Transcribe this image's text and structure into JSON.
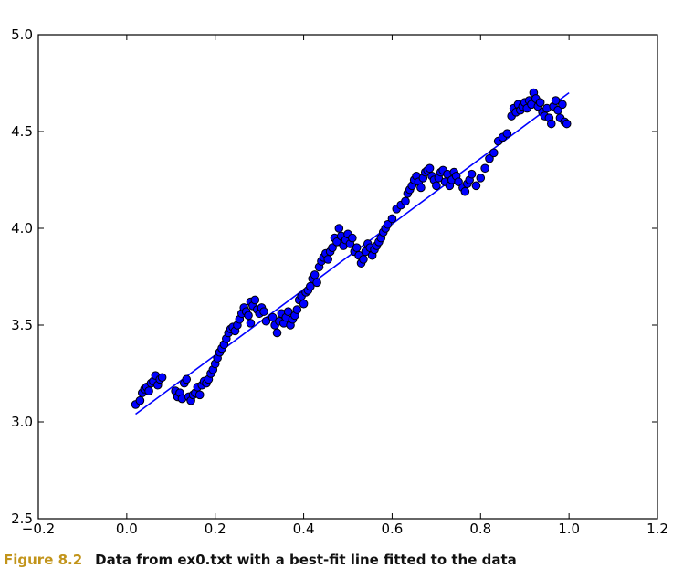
{
  "chart_data": {
    "type": "scatter",
    "title": "",
    "xlabel": "",
    "ylabel": "",
    "xlim": [
      -0.2,
      1.2
    ],
    "ylim": [
      2.5,
      5.0
    ],
    "x_ticks": [
      -0.2,
      0.0,
      0.2,
      0.4,
      0.6,
      0.8,
      1.0,
      1.2
    ],
    "x_tick_labels": [
      "−0.2",
      "0.0",
      "0.2",
      "0.4",
      "0.6",
      "0.8",
      "1.0",
      "1.2"
    ],
    "y_ticks": [
      2.5,
      3.0,
      3.5,
      4.0,
      4.5,
      5.0
    ],
    "y_tick_labels": [
      "2.5",
      "3.0",
      "3.5",
      "4.0",
      "4.5",
      "5.0"
    ],
    "grid": false,
    "legend": "none",
    "marker_color": "#0000ff",
    "line_color": "#0000ff",
    "fit_line": {
      "x": [
        0.02,
        1.0
      ],
      "y": [
        3.04,
        4.7
      ]
    },
    "points": [
      [
        0.02,
        3.09
      ],
      [
        0.03,
        3.11
      ],
      [
        0.035,
        3.15
      ],
      [
        0.04,
        3.17
      ],
      [
        0.045,
        3.18
      ],
      [
        0.05,
        3.16
      ],
      [
        0.055,
        3.2
      ],
      [
        0.06,
        3.21
      ],
      [
        0.065,
        3.24
      ],
      [
        0.07,
        3.19
      ],
      [
        0.075,
        3.22
      ],
      [
        0.08,
        3.23
      ],
      [
        0.11,
        3.16
      ],
      [
        0.115,
        3.13
      ],
      [
        0.12,
        3.15
      ],
      [
        0.125,
        3.12
      ],
      [
        0.13,
        3.2
      ],
      [
        0.135,
        3.22
      ],
      [
        0.14,
        3.13
      ],
      [
        0.145,
        3.11
      ],
      [
        0.15,
        3.14
      ],
      [
        0.155,
        3.15
      ],
      [
        0.16,
        3.18
      ],
      [
        0.165,
        3.14
      ],
      [
        0.17,
        3.19
      ],
      [
        0.175,
        3.21
      ],
      [
        0.18,
        3.2
      ],
      [
        0.185,
        3.22
      ],
      [
        0.19,
        3.25
      ],
      [
        0.195,
        3.27
      ],
      [
        0.2,
        3.3
      ],
      [
        0.205,
        3.33
      ],
      [
        0.21,
        3.36
      ],
      [
        0.215,
        3.38
      ],
      [
        0.22,
        3.4
      ],
      [
        0.225,
        3.43
      ],
      [
        0.23,
        3.46
      ],
      [
        0.235,
        3.48
      ],
      [
        0.24,
        3.49
      ],
      [
        0.245,
        3.47
      ],
      [
        0.25,
        3.5
      ],
      [
        0.255,
        3.53
      ],
      [
        0.26,
        3.56
      ],
      [
        0.265,
        3.59
      ],
      [
        0.27,
        3.57
      ],
      [
        0.275,
        3.55
      ],
      [
        0.28,
        3.62
      ],
      [
        0.285,
        3.6
      ],
      [
        0.29,
        3.63
      ],
      [
        0.295,
        3.58
      ],
      [
        0.3,
        3.56
      ],
      [
        0.305,
        3.59
      ],
      [
        0.31,
        3.57
      ],
      [
        0.315,
        3.52
      ],
      [
        0.28,
        3.51
      ],
      [
        0.33,
        3.54
      ],
      [
        0.335,
        3.5
      ],
      [
        0.34,
        3.46
      ],
      [
        0.345,
        3.52
      ],
      [
        0.35,
        3.56
      ],
      [
        0.355,
        3.51
      ],
      [
        0.36,
        3.54
      ],
      [
        0.365,
        3.57
      ],
      [
        0.37,
        3.5
      ],
      [
        0.375,
        3.53
      ],
      [
        0.38,
        3.55
      ],
      [
        0.385,
        3.58
      ],
      [
        0.39,
        3.63
      ],
      [
        0.395,
        3.65
      ],
      [
        0.4,
        3.61
      ],
      [
        0.405,
        3.67
      ],
      [
        0.41,
        3.68
      ],
      [
        0.415,
        3.7
      ],
      [
        0.42,
        3.74
      ],
      [
        0.425,
        3.76
      ],
      [
        0.43,
        3.72
      ],
      [
        0.435,
        3.8
      ],
      [
        0.44,
        3.83
      ],
      [
        0.445,
        3.85
      ],
      [
        0.45,
        3.87
      ],
      [
        0.455,
        3.84
      ],
      [
        0.46,
        3.88
      ],
      [
        0.465,
        3.9
      ],
      [
        0.47,
        3.95
      ],
      [
        0.475,
        3.93
      ],
      [
        0.48,
        4.0
      ],
      [
        0.485,
        3.96
      ],
      [
        0.49,
        3.91
      ],
      [
        0.495,
        3.94
      ],
      [
        0.5,
        3.97
      ],
      [
        0.505,
        3.92
      ],
      [
        0.51,
        3.95
      ],
      [
        0.515,
        3.88
      ],
      [
        0.52,
        3.9
      ],
      [
        0.525,
        3.86
      ],
      [
        0.53,
        3.82
      ],
      [
        0.535,
        3.84
      ],
      [
        0.54,
        3.88
      ],
      [
        0.545,
        3.92
      ],
      [
        0.55,
        3.9
      ],
      [
        0.555,
        3.86
      ],
      [
        0.56,
        3.89
      ],
      [
        0.565,
        3.91
      ],
      [
        0.57,
        3.93
      ],
      [
        0.575,
        3.95
      ],
      [
        0.58,
        3.98
      ],
      [
        0.585,
        4.0
      ],
      [
        0.59,
        4.02
      ],
      [
        0.6,
        4.05
      ],
      [
        0.61,
        4.1
      ],
      [
        0.62,
        4.12
      ],
      [
        0.63,
        4.14
      ],
      [
        0.635,
        4.18
      ],
      [
        0.64,
        4.2
      ],
      [
        0.645,
        4.22
      ],
      [
        0.65,
        4.25
      ],
      [
        0.655,
        4.27
      ],
      [
        0.66,
        4.24
      ],
      [
        0.665,
        4.21
      ],
      [
        0.67,
        4.26
      ],
      [
        0.675,
        4.29
      ],
      [
        0.68,
        4.3
      ],
      [
        0.685,
        4.31
      ],
      [
        0.69,
        4.27
      ],
      [
        0.695,
        4.25
      ],
      [
        0.7,
        4.22
      ],
      [
        0.705,
        4.26
      ],
      [
        0.71,
        4.29
      ],
      [
        0.715,
        4.3
      ],
      [
        0.72,
        4.24
      ],
      [
        0.725,
        4.28
      ],
      [
        0.73,
        4.22
      ],
      [
        0.735,
        4.25
      ],
      [
        0.74,
        4.29
      ],
      [
        0.745,
        4.27
      ],
      [
        0.75,
        4.24
      ],
      [
        0.76,
        4.21
      ],
      [
        0.765,
        4.19
      ],
      [
        0.77,
        4.23
      ],
      [
        0.775,
        4.25
      ],
      [
        0.78,
        4.28
      ],
      [
        0.79,
        4.22
      ],
      [
        0.8,
        4.26
      ],
      [
        0.81,
        4.31
      ],
      [
        0.82,
        4.36
      ],
      [
        0.83,
        4.39
      ],
      [
        0.84,
        4.45
      ],
      [
        0.85,
        4.47
      ],
      [
        0.86,
        4.49
      ],
      [
        0.87,
        4.58
      ],
      [
        0.875,
        4.62
      ],
      [
        0.88,
        4.6
      ],
      [
        0.885,
        4.64
      ],
      [
        0.89,
        4.61
      ],
      [
        0.895,
        4.63
      ],
      [
        0.9,
        4.65
      ],
      [
        0.905,
        4.62
      ],
      [
        0.91,
        4.66
      ],
      [
        0.915,
        4.64
      ],
      [
        0.92,
        4.7
      ],
      [
        0.925,
        4.67
      ],
      [
        0.93,
        4.63
      ],
      [
        0.935,
        4.65
      ],
      [
        0.94,
        4.6
      ],
      [
        0.945,
        4.58
      ],
      [
        0.95,
        4.62
      ],
      [
        0.955,
        4.57
      ],
      [
        0.96,
        4.54
      ],
      [
        0.965,
        4.63
      ],
      [
        0.97,
        4.66
      ],
      [
        0.975,
        4.61
      ],
      [
        0.98,
        4.57
      ],
      [
        0.985,
        4.64
      ],
      [
        0.99,
        4.55
      ],
      [
        0.995,
        4.54
      ]
    ]
  },
  "caption": {
    "figure_number": "Figure 8.2",
    "text": "Data from ex0.txt with a best-fit line fitted to the data"
  }
}
